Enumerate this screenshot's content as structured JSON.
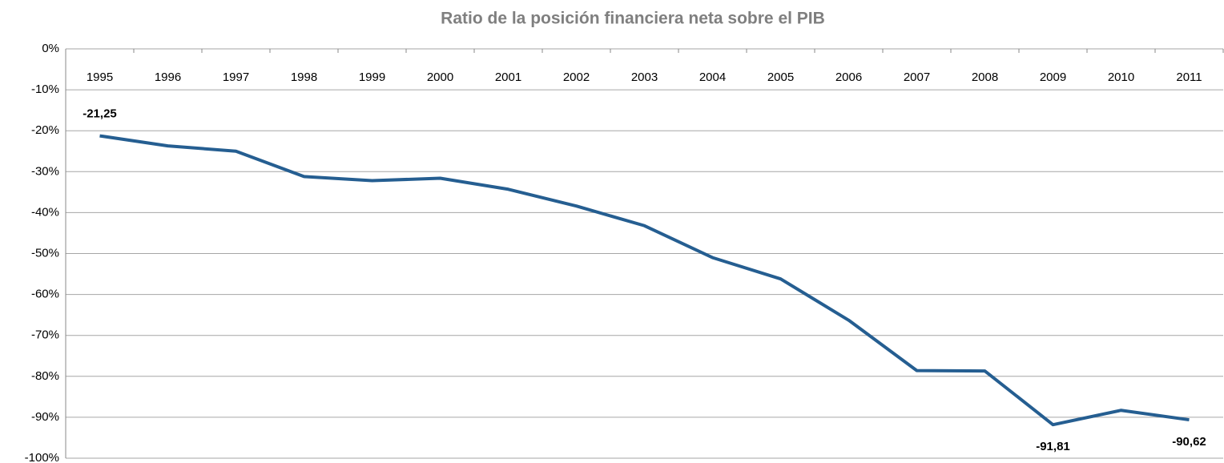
{
  "chart_data": {
    "type": "line",
    "title": "Ratio de la posición financiera neta sobre el PIB",
    "categories": [
      "1995",
      "1996",
      "1997",
      "1998",
      "1999",
      "2000",
      "2001",
      "2002",
      "2003",
      "2004",
      "2005",
      "2006",
      "2007",
      "2008",
      "2009",
      "2010",
      "2011"
    ],
    "series": [
      {
        "name": "Ratio",
        "color": "#255e91",
        "values": [
          -21.25,
          -23.7,
          -25.0,
          -31.2,
          -32.2,
          -31.6,
          -34.3,
          -38.4,
          -43.2,
          -51.0,
          -56.2,
          -66.3,
          -78.6,
          -78.7,
          -91.81,
          -88.3,
          -90.62
        ],
        "value_labels": [
          "-21,25",
          null,
          null,
          null,
          null,
          null,
          null,
          null,
          null,
          null,
          null,
          null,
          null,
          null,
          "-91,81",
          null,
          "-90,62"
        ]
      }
    ],
    "ylim": [
      -100,
      0
    ],
    "yticks": [
      {
        "value": 0,
        "label": "0%"
      },
      {
        "value": -10,
        "label": "-10%"
      },
      {
        "value": -20,
        "label": "-20%"
      },
      {
        "value": -30,
        "label": "-30%"
      },
      {
        "value": -40,
        "label": "-40%"
      },
      {
        "value": -50,
        "label": "-50%"
      },
      {
        "value": -60,
        "label": "-60%"
      },
      {
        "value": -70,
        "label": "-70%"
      },
      {
        "value": -80,
        "label": "-80%"
      },
      {
        "value": -90,
        "label": "-90%"
      },
      {
        "value": -100,
        "label": "-100%"
      }
    ],
    "grid": true
  }
}
